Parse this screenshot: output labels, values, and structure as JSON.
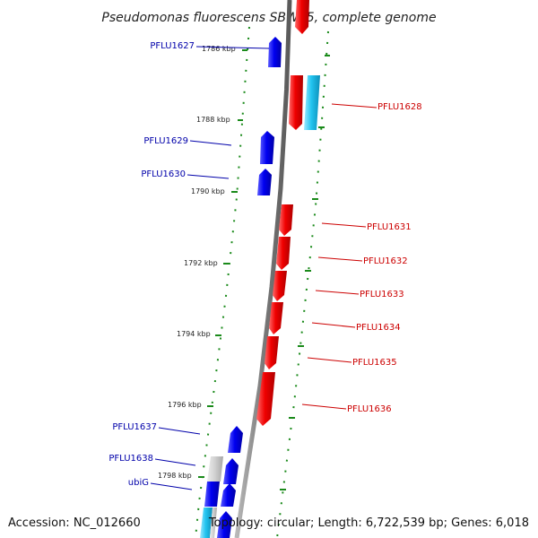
{
  "title": "Pseudomonas fluorescens SBW25, complete genome",
  "footer": {
    "accession": "Accession: NC_012660",
    "stats": "Topology: circular; Length: 6,722,539 bp; Genes: 6,018"
  },
  "colors": {
    "forward_gene": "#e00000",
    "reverse_gene": "#0000e0",
    "rna_gene": "#19b8e8",
    "pseudo_gene": "#c8c8c8",
    "backbone": "#808080",
    "gc_dots": "#1a8a1a",
    "label_forward": "#cc0000",
    "label_reverse": "#0000aa"
  },
  "ruler": [
    {
      "label": "1786 kbp"
    },
    {
      "label": "1788 kbp"
    },
    {
      "label": "1790 kbp"
    },
    {
      "label": "1792 kbp"
    },
    {
      "label": "1794 kbp"
    },
    {
      "label": "1796 kbp"
    },
    {
      "label": "1798 kbp"
    }
  ],
  "gene_labels": [
    {
      "name": "PFLU1627",
      "strand": "reverse"
    },
    {
      "name": "PFLU1628",
      "strand": "forward"
    },
    {
      "name": "PFLU1629",
      "strand": "reverse"
    },
    {
      "name": "PFLU1630",
      "strand": "reverse"
    },
    {
      "name": "PFLU1631",
      "strand": "forward"
    },
    {
      "name": "PFLU1632",
      "strand": "forward"
    },
    {
      "name": "PFLU1633",
      "strand": "forward"
    },
    {
      "name": "PFLU1634",
      "strand": "forward"
    },
    {
      "name": "PFLU1635",
      "strand": "forward"
    },
    {
      "name": "PFLU1636",
      "strand": "forward"
    },
    {
      "name": "PFLU1637",
      "strand": "reverse"
    },
    {
      "name": "PFLU1638",
      "strand": "reverse"
    },
    {
      "name": "ubiG",
      "strand": "reverse"
    }
  ]
}
